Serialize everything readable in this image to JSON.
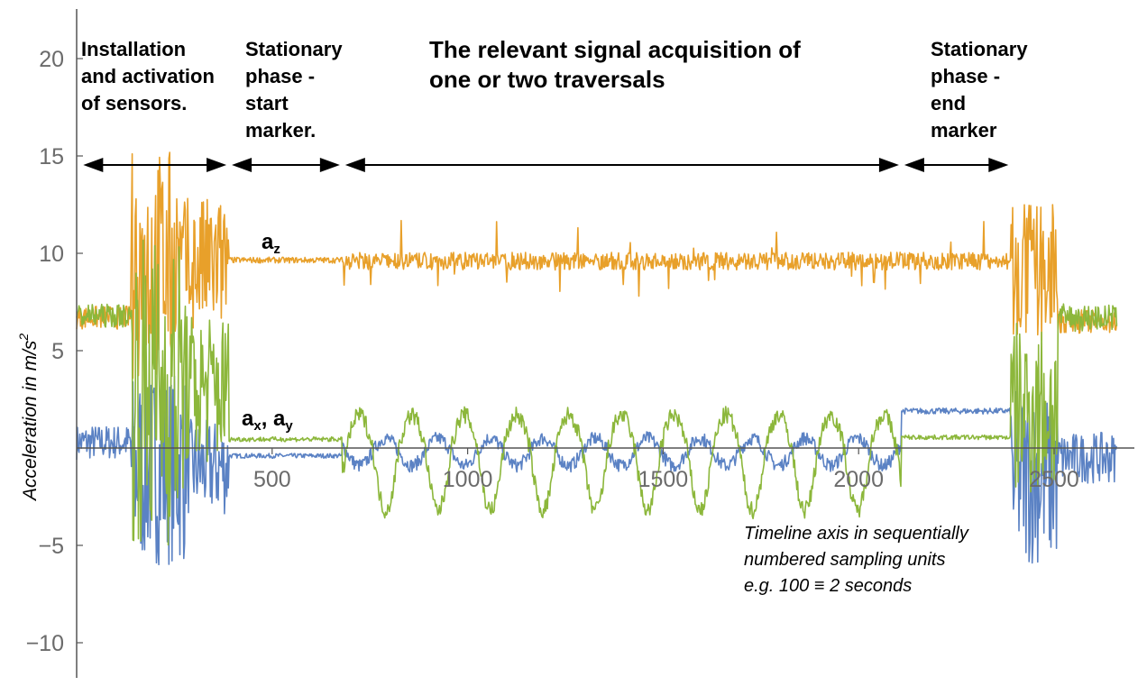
{
  "chart_data": {
    "type": "line",
    "ylabel": "Acceleration in m/s",
    "ylabel_sup": "2",
    "xlim": [
      0,
      2700
    ],
    "ylim": [
      -11,
      22
    ],
    "x_ticks": [
      "500",
      "1000",
      "1500",
      "2000",
      "2500"
    ],
    "y_ticks": [
      "20",
      "15",
      "10",
      "5",
      "−5",
      "−10"
    ],
    "colors": {
      "az": "#e8a02a",
      "ay": "#8cb73b",
      "ax": "#5b82c4"
    },
    "series_labels": {
      "az": {
        "main": "a",
        "sub": "z"
      },
      "axy": {
        "main1": "a",
        "sub1": "x",
        "sep": ", ",
        "main2": "a",
        "sub2": "y"
      }
    },
    "phases": [
      {
        "lines": [
          "Installation",
          "and activation",
          "of sensors."
        ],
        "x_start": 10,
        "x_end": 390
      },
      {
        "lines": [
          "Stationary",
          "phase  -",
          "start",
          "marker."
        ],
        "x_start": 390,
        "x_end": 680
      },
      {
        "lines": [
          "The relevant signal acquisition of",
          "one or two traversals"
        ],
        "x_start": 680,
        "x_end": 2110
      },
      {
        "lines": [
          "Stationary",
          "phase  -",
          "end",
          "marker"
        ],
        "x_start": 2110,
        "x_end": 2390
      }
    ],
    "annotation_lines": [
      "Timeline axis in sequentially",
      "numbered sampling units",
      "e.g. 100 ≡ 2 seconds"
    ],
    "series": [
      {
        "key": "az",
        "mean_plateau": 9.7,
        "range_x": [
          0,
          2660
        ]
      },
      {
        "key": "ay",
        "mean_plateau": 0.5,
        "range_x": [
          0,
          2660
        ]
      },
      {
        "key": "ax",
        "mean_plateau": -0.5,
        "range_x": [
          0,
          2660
        ]
      }
    ]
  }
}
